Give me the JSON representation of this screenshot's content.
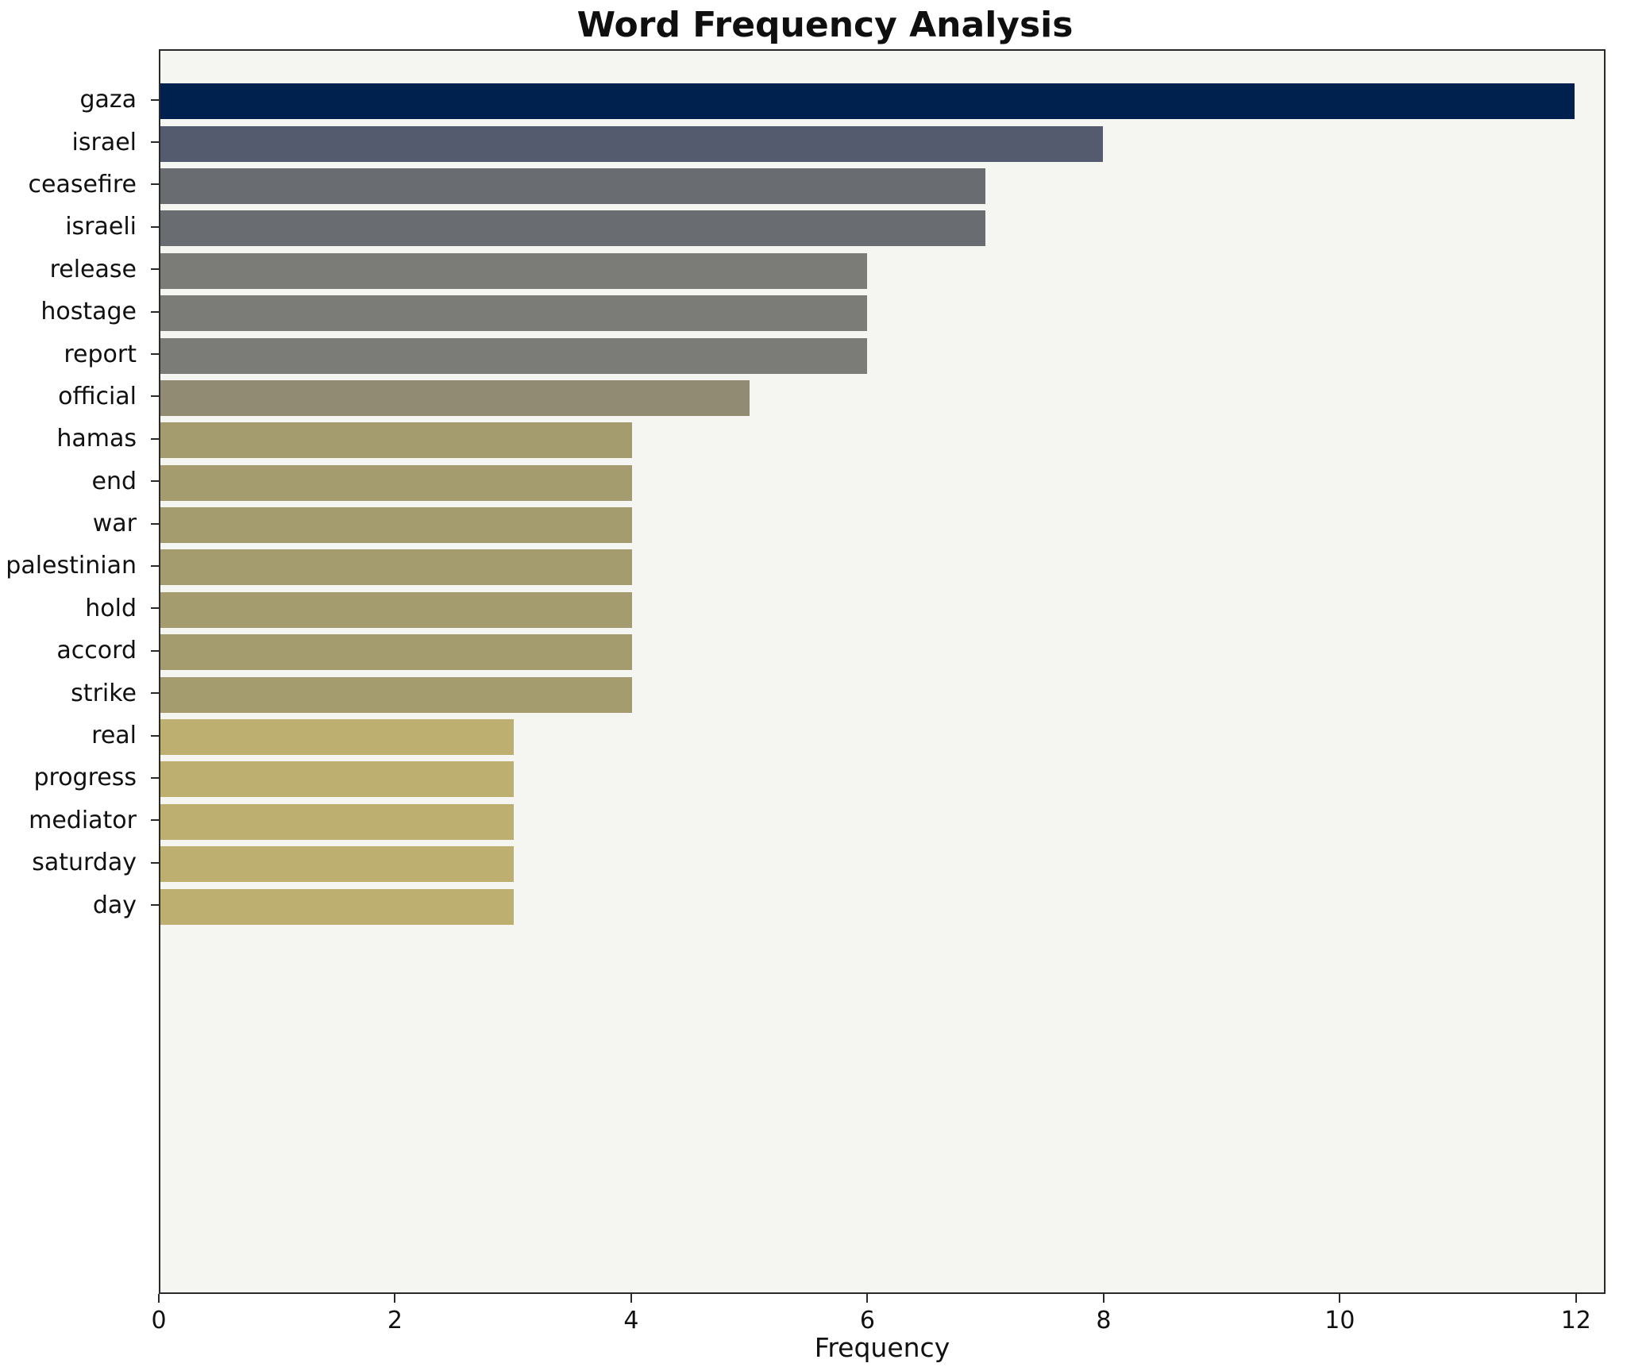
{
  "chart_data": {
    "type": "bar",
    "orientation": "horizontal",
    "title": "Word Frequency Analysis",
    "xlabel": "Frequency",
    "ylabel": "",
    "categories": [
      "gaza",
      "israel",
      "ceasefire",
      "israeli",
      "release",
      "hostage",
      "report",
      "official",
      "hamas",
      "end",
      "war",
      "palestinian",
      "hold",
      "accord",
      "strike",
      "real",
      "progress",
      "mediator",
      "saturday",
      "day"
    ],
    "values": [
      12,
      8,
      7,
      7,
      6,
      6,
      6,
      5,
      4,
      4,
      4,
      4,
      4,
      4,
      4,
      3,
      3,
      3,
      3,
      3
    ],
    "colors": [
      "#00204d",
      "#545b6e",
      "#696c71",
      "#696c71",
      "#7b7b78",
      "#7b7b78",
      "#7b7b78",
      "#928b73",
      "#a49c6e",
      "#a49c6e",
      "#a49c6e",
      "#a49c6e",
      "#a49c6e",
      "#a49c6e",
      "#a49c6e",
      "#bcaf6f",
      "#bcaf6f",
      "#bcaf6f",
      "#bcaf6f",
      "#bcaf6f"
    ],
    "xlim": [
      0,
      12.25
    ],
    "xticks": [
      0,
      2,
      4,
      6,
      8,
      10,
      12
    ],
    "grid": false,
    "legend": "none",
    "plot_background": "#f5f5f2",
    "figure_background": "#ffffff"
  }
}
